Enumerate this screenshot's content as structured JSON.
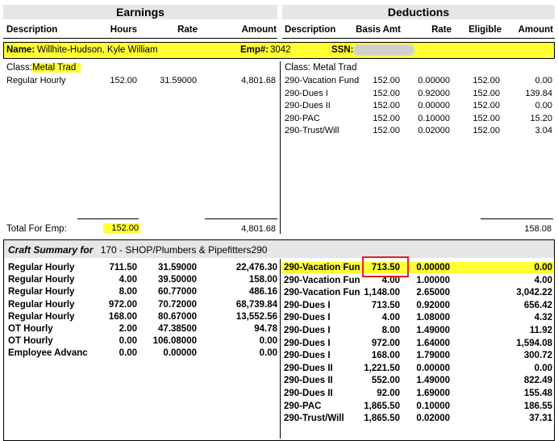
{
  "earnings_header": "Earnings",
  "deductions_header": "Deductions",
  "earn_cols": [
    "Description",
    "Hours",
    "Rate",
    "Amount"
  ],
  "ded_cols": [
    "Description",
    "Basis Amt",
    "Rate",
    "Eligible",
    "Amount"
  ],
  "employee": {
    "name_label": "Name:",
    "name": "Willhite-Hudson, Kyle William",
    "emp_label": "Emp#:",
    "emp_no": "3042",
    "ssn_label": "SSN:"
  },
  "earn_class": {
    "label": "Class:",
    "value": "Metal Trad"
  },
  "earnings": [
    {
      "desc": "Regular Hourly",
      "hours": "152.00",
      "rate": "31.59000",
      "amount": "4,801.68"
    }
  ],
  "ded_class": "Class: Metal Trad",
  "deductions": [
    {
      "desc": "290-Vacation Fund",
      "basis": "152.00",
      "rate": "0.00000",
      "eligible": "152.00",
      "amount": "0.00"
    },
    {
      "desc": "290-Dues I",
      "basis": "152.00",
      "rate": "0.92000",
      "eligible": "152.00",
      "amount": "139.84"
    },
    {
      "desc": "290-Dues II",
      "basis": "152.00",
      "rate": "0.00000",
      "eligible": "152.00",
      "amount": "0.00"
    },
    {
      "desc": "290-PAC",
      "basis": "152.00",
      "rate": "0.10000",
      "eligible": "152.00",
      "amount": "15.20"
    },
    {
      "desc": "290-Trust/Will",
      "basis": "152.00",
      "rate": "0.02000",
      "eligible": "152.00",
      "amount": "3.04"
    }
  ],
  "totals": {
    "label": "Total For Emp:",
    "hours": "152.00",
    "amount": "4,801.68",
    "ded_amount": "158.08"
  },
  "craft": {
    "label": "Craft Summary for",
    "value": "170 -  SHOP/Plumbers & Pipefitters290"
  },
  "craft_earnings": [
    {
      "desc": "Regular Hourly",
      "hours": "711.50",
      "rate": "31.59000",
      "amount": "22,476.30"
    },
    {
      "desc": "Regular Hourly",
      "hours": "4.00",
      "rate": "39.50000",
      "amount": "158.00"
    },
    {
      "desc": "Regular Hourly",
      "hours": "8.00",
      "rate": "60.77000",
      "amount": "486.16"
    },
    {
      "desc": "Regular Hourly",
      "hours": "972.00",
      "rate": "70.72000",
      "amount": "68,739.84"
    },
    {
      "desc": "Regular Hourly",
      "hours": "168.00",
      "rate": "80.67000",
      "amount": "13,552.56"
    },
    {
      "desc": "OT Hourly",
      "hours": "2.00",
      "rate": "47.38500",
      "amount": "94.78"
    },
    {
      "desc": "OT Hourly",
      "hours": "0.00",
      "rate": "106.08000",
      "amount": "0.00"
    },
    {
      "desc": "Employee Advanc",
      "hours": "0.00",
      "rate": "0.00000",
      "amount": "0.00"
    }
  ],
  "craft_deductions": [
    {
      "desc": "290-Vacation Fun",
      "basis": "713.50",
      "rate": "0.00000",
      "amount": "0.00"
    },
    {
      "desc": "290-Vacation Fun",
      "basis": "4.00",
      "rate": "1.00000",
      "amount": "4.00"
    },
    {
      "desc": "290-Vacation Fun",
      "basis": "1,148.00",
      "rate": "2.65000",
      "amount": "3,042.22"
    },
    {
      "desc": "290-Dues I",
      "basis": "713.50",
      "rate": "0.92000",
      "amount": "656.42"
    },
    {
      "desc": "290-Dues I",
      "basis": "4.00",
      "rate": "1.08000",
      "amount": "4.32"
    },
    {
      "desc": "290-Dues I",
      "basis": "8.00",
      "rate": "1.49000",
      "amount": "11.92"
    },
    {
      "desc": "290-Dues I",
      "basis": "972.00",
      "rate": "1.64000",
      "amount": "1,594.08"
    },
    {
      "desc": "290-Dues I",
      "basis": "168.00",
      "rate": "1.79000",
      "amount": "300.72"
    },
    {
      "desc": "290-Dues II",
      "basis": "1,221.50",
      "rate": "0.00000",
      "amount": "0.00"
    },
    {
      "desc": "290-Dues II",
      "basis": "552.00",
      "rate": "1.49000",
      "amount": "822.49"
    },
    {
      "desc": "290-Dues II",
      "basis": "92.00",
      "rate": "1.69000",
      "amount": "155.48"
    },
    {
      "desc": "290-PAC",
      "basis": "1,865.50",
      "rate": "0.10000",
      "amount": "186.55"
    },
    {
      "desc": "290-Trust/Will",
      "basis": "1,865.50",
      "rate": "0.02000",
      "amount": "37.31"
    }
  ],
  "colors": {
    "highlight": "#ffff33",
    "header_band": "#e6e6e6",
    "red_box": "#e02020",
    "craft_band": "#e6e6e6"
  }
}
